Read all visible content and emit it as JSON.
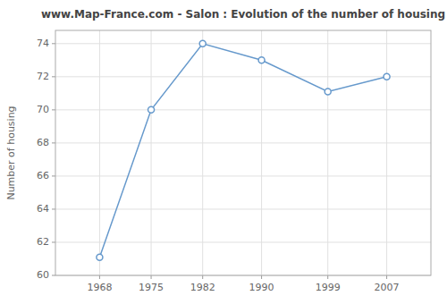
{
  "chart_data": {
    "type": "line",
    "title": "www.Map-France.com - Salon : Evolution of the number of housing",
    "ylabel": "Number of housing",
    "x": [
      1968,
      1975,
      1982,
      1990,
      1999,
      2007
    ],
    "values": [
      61.1,
      70.0,
      74.0,
      73.0,
      71.1,
      72.0
    ],
    "color": "#6699cc",
    "marker": "circle",
    "xlim": [
      1962,
      2013
    ],
    "ylim": [
      60,
      74.8
    ],
    "xticks": [
      1968,
      1975,
      1982,
      1990,
      1999,
      2007
    ],
    "yticks": [
      60,
      62,
      64,
      66,
      68,
      70,
      72,
      74
    ],
    "grid": true
  }
}
